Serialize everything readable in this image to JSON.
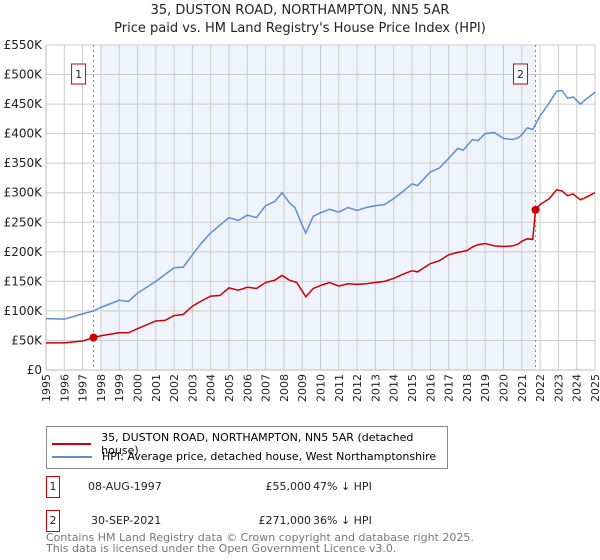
{
  "chart_data": {
    "type": "line",
    "title": "35, DUSTON ROAD, NORTHAMPTON, NN5 5AR",
    "subtitle": "Price paid vs. HM Land Registry's House Price Index (HPI)",
    "xlim": [
      1995,
      2025
    ],
    "ylim": [
      0,
      550000
    ],
    "x_ticks": [
      "1995",
      "1996",
      "1997",
      "1998",
      "1999",
      "2000",
      "2001",
      "2002",
      "2003",
      "2004",
      "2005",
      "2006",
      "2007",
      "2008",
      "2009",
      "2010",
      "2011",
      "2012",
      "2013",
      "2014",
      "2015",
      "2016",
      "2017",
      "2018",
      "2019",
      "2020",
      "2021",
      "2022",
      "2023",
      "2024",
      "2025"
    ],
    "y_ticks": [
      {
        "v": 0,
        "label": "£0"
      },
      {
        "v": 50000,
        "label": "£50K"
      },
      {
        "v": 100000,
        "label": "£100K"
      },
      {
        "v": 150000,
        "label": "£150K"
      },
      {
        "v": 200000,
        "label": "£200K"
      },
      {
        "v": 250000,
        "label": "£250K"
      },
      {
        "v": 300000,
        "label": "£300K"
      },
      {
        "v": 350000,
        "label": "£350K"
      },
      {
        "v": 400000,
        "label": "£400K"
      },
      {
        "v": 450000,
        "label": "£450K"
      },
      {
        "v": 500000,
        "label": "£500K"
      },
      {
        "v": 550000,
        "label": "£550K"
      }
    ],
    "grid": true,
    "legend_placement": "below",
    "series": [
      {
        "name": "35, DUSTON ROAD, NORTHAMPTON, NN5 5AR (detached house)",
        "color": "#cc0000",
        "x": [
          1995,
          1996,
          1997,
          1997.6,
          1998,
          1999,
          1999.5,
          2000,
          2001,
          2001.5,
          2002,
          2002.5,
          2003,
          2003.5,
          2004,
          2004.5,
          2005,
          2005.5,
          2006,
          2006.5,
          2007,
          2007.5,
          2007.9,
          2008.3,
          2008.7,
          2009.2,
          2009.6,
          2010,
          2010.5,
          2011,
          2011.5,
          2012,
          2012.5,
          2013,
          2013.5,
          2014,
          2014.5,
          2015,
          2015.3,
          2016,
          2016.5,
          2017,
          2017.5,
          2018,
          2018.3,
          2018.6,
          2019,
          2019.5,
          2020,
          2020.5,
          2020.8,
          2021,
          2021.3,
          2021.6,
          2021.75,
          2022,
          2022.5,
          2022.9,
          2023.2,
          2023.5,
          2023.8,
          2024.2,
          2024.5,
          2025
        ],
        "y": [
          46000,
          46000,
          49000,
          55000,
          58000,
          63000,
          63000,
          70000,
          83000,
          84000,
          92000,
          94000,
          108000,
          117000,
          125000,
          126000,
          139000,
          135000,
          140000,
          138000,
          148000,
          152000,
          160000,
          152000,
          148000,
          124000,
          138000,
          143000,
          148000,
          142000,
          146000,
          145000,
          146000,
          148000,
          150000,
          155000,
          162000,
          168000,
          166000,
          180000,
          185000,
          195000,
          199000,
          202000,
          208000,
          212000,
          214000,
          210000,
          209000,
          210000,
          213000,
          218000,
          222000,
          221000,
          271000,
          280000,
          290000,
          305000,
          303000,
          295000,
          298000,
          288000,
          292000,
          300000
        ]
      },
      {
        "name": "HPI: Average price, detached house, West Northamptonshire",
        "color": "#5b8fd4",
        "x": [
          1995,
          1996,
          1997,
          1997.6,
          1998,
          1999,
          1999.5,
          2000,
          2001,
          2002,
          2002.5,
          2003,
          2003.5,
          2004,
          2005,
          2005.5,
          2006,
          2006.5,
          2007,
          2007.5,
          2007.9,
          2008.3,
          2008.6,
          2009,
          2009.2,
          2009.6,
          2010,
          2010.5,
          2011,
          2011.5,
          2012,
          2012.5,
          2013,
          2013.5,
          2014,
          2014.5,
          2015,
          2015.3,
          2016,
          2016.5,
          2017,
          2017.5,
          2017.8,
          2018.3,
          2018.6,
          2019,
          2019.5,
          2020,
          2020.5,
          2020.8,
          2021,
          2021.3,
          2021.6,
          2022,
          2022.5,
          2022.9,
          2023.2,
          2023.5,
          2023.8,
          2024.2,
          2024.5,
          2025
        ],
        "y": [
          87000,
          86000,
          95000,
          100000,
          106000,
          118000,
          116000,
          130000,
          150000,
          173000,
          174000,
          195000,
          215000,
          232000,
          258000,
          253000,
          262000,
          258000,
          278000,
          285000,
          300000,
          283000,
          275000,
          245000,
          232000,
          260000,
          266000,
          272000,
          267000,
          275000,
          270000,
          275000,
          278000,
          280000,
          290000,
          302000,
          315000,
          312000,
          335000,
          342000,
          358000,
          375000,
          372000,
          390000,
          388000,
          400000,
          402000,
          392000,
          390000,
          393000,
          398000,
          410000,
          407000,
          430000,
          452000,
          472000,
          473000,
          460000,
          462000,
          450000,
          458000,
          470000
        ]
      }
    ],
    "annotations": [
      {
        "label": "1",
        "x": 1997.6,
        "y": 55000
      },
      {
        "label": "2",
        "x": 2021.75,
        "y": 271000
      }
    ]
  },
  "transactions": [
    {
      "num": "1",
      "date": "08-AUG-1997",
      "price": "£55,000",
      "hpi": "47% ↓ HPI"
    },
    {
      "num": "2",
      "date": "30-SEP-2021",
      "price": "£271,000",
      "hpi": "36% ↓ HPI"
    }
  ],
  "footer": {
    "line1": "Contains HM Land Registry data © Crown copyright and database right 2025.",
    "line2": "This data is licensed under the Open Government Licence v3.0."
  }
}
